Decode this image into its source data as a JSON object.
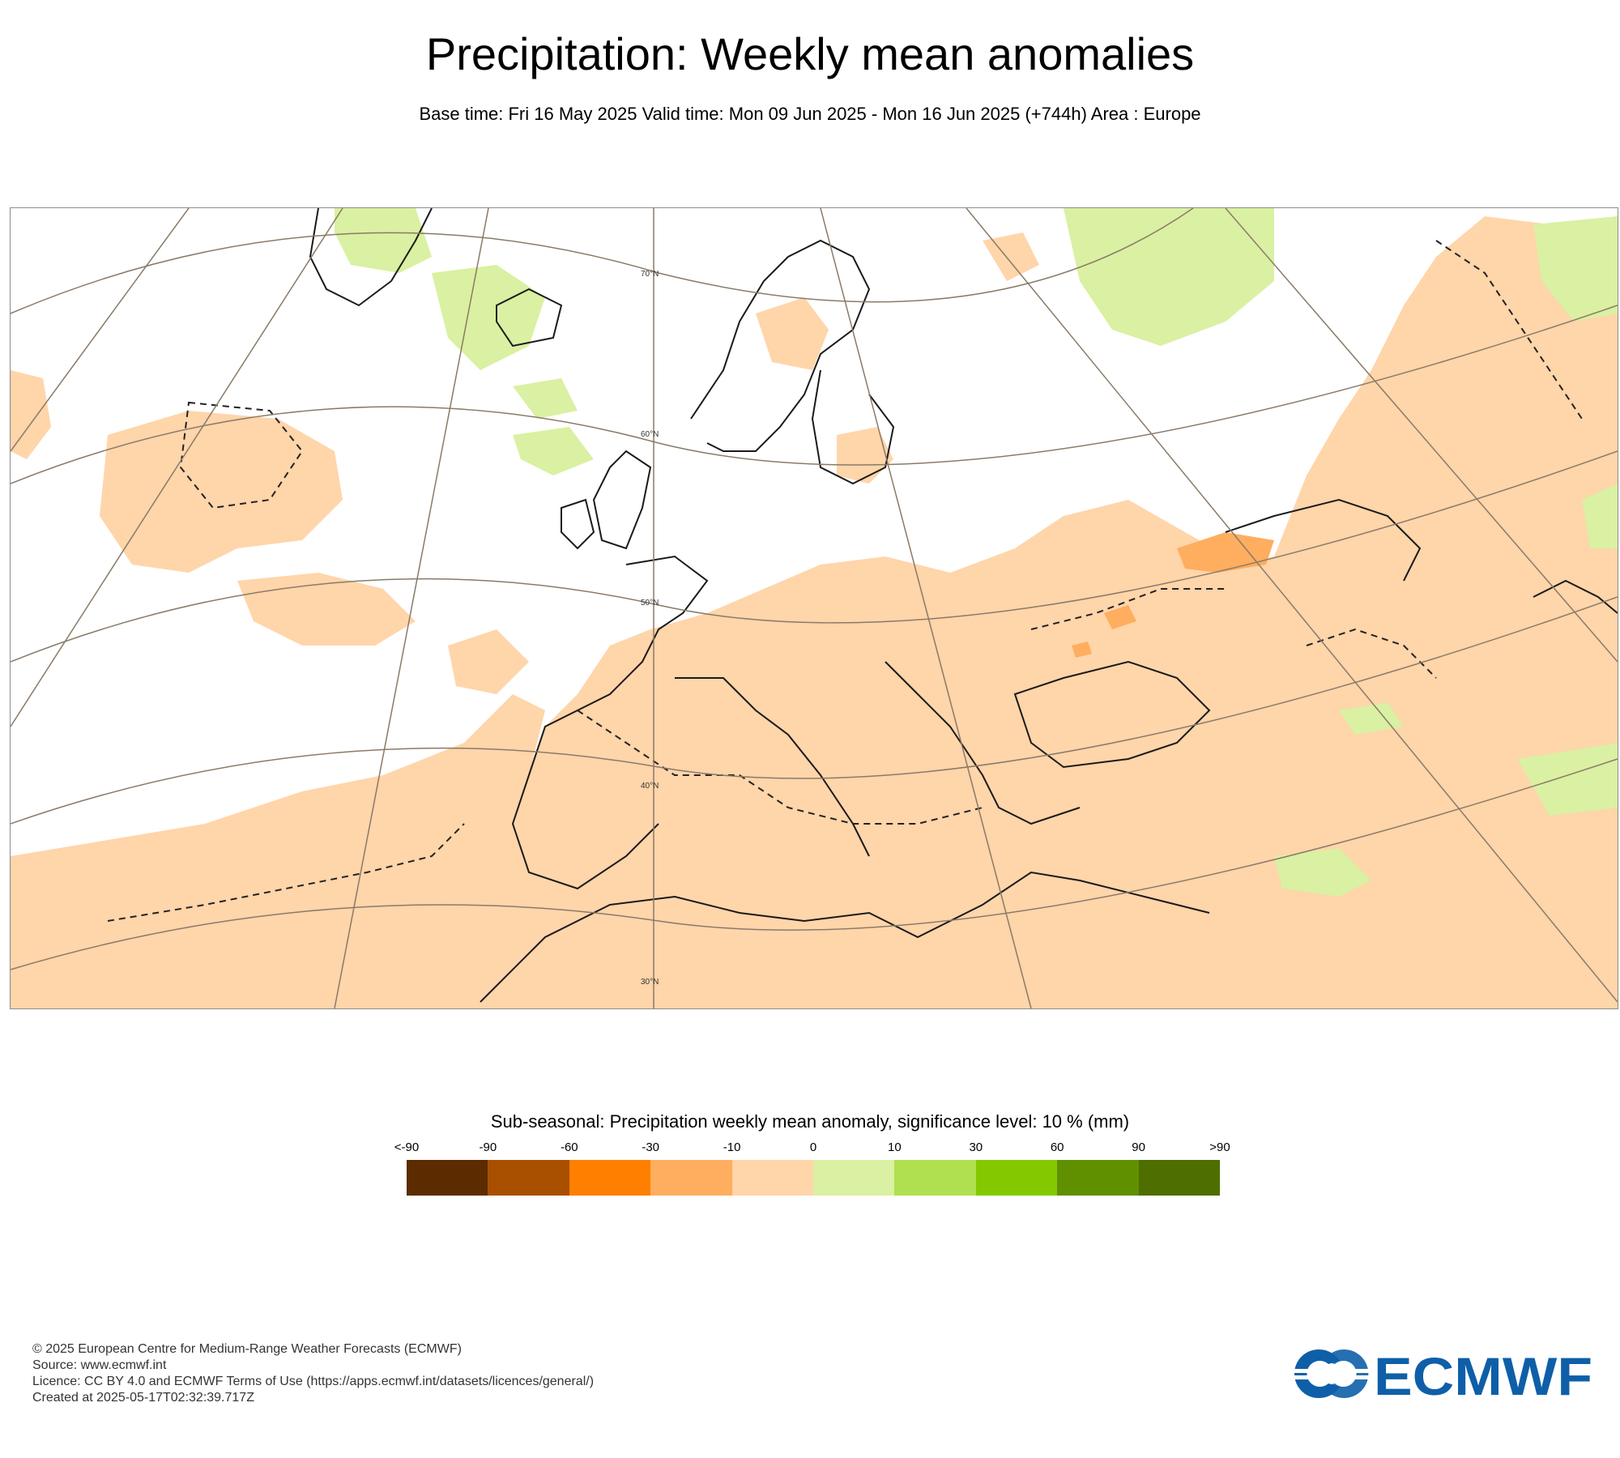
{
  "title": "Precipitation: Weekly mean anomalies",
  "subtitle": "Base time: Fri 16 May 2025 Valid time: Mon 09 Jun 2025 - Mon 16 Jun 2025 (+744h) Area : Europe",
  "map": {
    "lat_labels": [
      "70°N",
      "60°N",
      "50°N",
      "40°N",
      "30°N"
    ]
  },
  "legend": {
    "title": "Sub-seasonal: Precipitation weekly mean anomaly, significance level: 10 % (mm)",
    "tick_labels": [
      "<-90",
      "-90",
      "-60",
      "-30",
      "-10",
      "0",
      "10",
      "30",
      "60",
      "90",
      ">90"
    ],
    "colors": [
      "#5c2c00",
      "#a85000",
      "#ff7f00",
      "#ffad5e",
      "#ffd5aa",
      "#daf0a2",
      "#b0e050",
      "#84c800",
      "#609000",
      "#4e6e00"
    ]
  },
  "footer": {
    "copyright": "© 2025 European Centre for Medium-Range Weather Forecasts (ECMWF)",
    "source": "Source: www.ecmwf.int",
    "licence": "Licence: CC BY 4.0 and ECMWF Terms of Use (https://apps.ecmwf.int/datasets/licences/general/)",
    "created": "Created at 2025-05-17T02:32:39.717Z"
  },
  "logo": {
    "text": "ECMWF",
    "color": "#0e5fa8"
  }
}
